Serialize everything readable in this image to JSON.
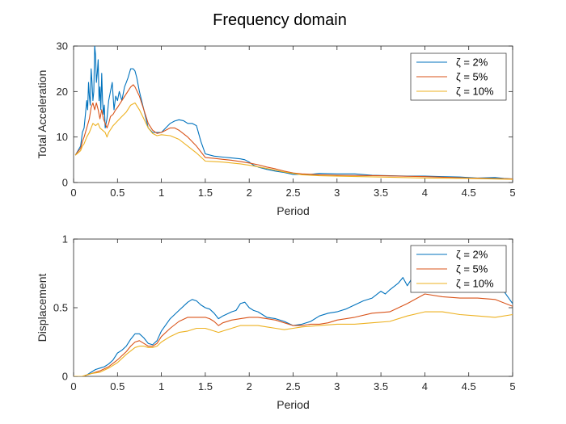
{
  "figure": {
    "title": "Frequency domain"
  },
  "chart_data": [
    {
      "type": "line",
      "xlabel": "Period",
      "ylabel": "Total Acceleration",
      "xlim": [
        0,
        5
      ],
      "ylim": [
        0,
        30
      ],
      "xticks": [
        "0",
        "0.5",
        "1",
        "1.5",
        "2",
        "2.5",
        "3",
        "3.5",
        "4",
        "4.5",
        "5"
      ],
      "yticks": [
        "0",
        "10",
        "20",
        "30"
      ],
      "legend": {
        "position": "top-right"
      },
      "series": [
        {
          "name": "ζ = 2%",
          "color": "#0072BD",
          "x": [
            0.02,
            0.05,
            0.08,
            0.1,
            0.12,
            0.14,
            0.15,
            0.16,
            0.17,
            0.18,
            0.19,
            0.2,
            0.21,
            0.22,
            0.23,
            0.24,
            0.25,
            0.26,
            0.27,
            0.28,
            0.29,
            0.3,
            0.31,
            0.32,
            0.33,
            0.34,
            0.35,
            0.36,
            0.38,
            0.4,
            0.42,
            0.44,
            0.46,
            0.48,
            0.5,
            0.52,
            0.55,
            0.58,
            0.6,
            0.62,
            0.65,
            0.68,
            0.7,
            0.72,
            0.75,
            0.8,
            0.85,
            0.9,
            0.95,
            1.0,
            1.05,
            1.1,
            1.15,
            1.2,
            1.25,
            1.3,
            1.35,
            1.4,
            1.45,
            1.5,
            1.6,
            1.7,
            1.8,
            1.9,
            1.95,
            2.0,
            2.05,
            2.1,
            2.2,
            2.3,
            2.4,
            2.5,
            2.6,
            2.7,
            2.8,
            3.0,
            3.2,
            3.4,
            3.6,
            3.8,
            4.0,
            4.2,
            4.4,
            4.6,
            4.8,
            4.9,
            5.0
          ],
          "y": [
            6,
            7,
            8,
            11,
            12,
            16,
            18,
            16,
            22,
            19,
            17,
            25,
            22,
            18,
            20,
            30,
            28,
            22,
            24,
            27,
            18,
            21,
            16,
            24,
            18,
            15,
            17,
            12,
            14,
            18,
            20,
            22,
            16,
            19,
            18,
            20,
            18,
            21,
            22,
            23,
            25,
            25,
            24.5,
            23,
            20,
            16,
            12,
            11,
            11,
            11,
            12,
            13,
            13.5,
            13.8,
            13.6,
            13,
            13,
            12.5,
            9,
            6.3,
            5.8,
            5.6,
            5.4,
            5.2,
            5.0,
            4.5,
            3.8,
            3.4,
            2.9,
            2.5,
            2.2,
            1.8,
            1.8,
            1.8,
            2.0,
            1.9,
            1.9,
            1.6,
            1.5,
            1.4,
            1.4,
            1.3,
            1.2,
            1.0,
            1.1,
            0.9,
            0.8
          ]
        },
        {
          "name": "ζ = 5%",
          "color": "#D95319",
          "x": [
            0.02,
            0.05,
            0.08,
            0.1,
            0.12,
            0.15,
            0.18,
            0.2,
            0.22,
            0.24,
            0.26,
            0.28,
            0.3,
            0.32,
            0.34,
            0.36,
            0.38,
            0.4,
            0.42,
            0.45,
            0.48,
            0.5,
            0.55,
            0.6,
            0.65,
            0.68,
            0.7,
            0.75,
            0.8,
            0.85,
            0.9,
            0.95,
            1.0,
            1.05,
            1.1,
            1.15,
            1.2,
            1.3,
            1.4,
            1.5,
            1.6,
            1.7,
            1.8,
            1.9,
            2.0,
            2.1,
            2.2,
            2.3,
            2.4,
            2.5,
            2.6,
            2.8,
            3.0,
            3.5,
            4.0,
            4.5,
            5.0
          ],
          "y": [
            6,
            6.8,
            7.5,
            9,
            10,
            12,
            14,
            16.5,
            17.5,
            16,
            17.5,
            16,
            14,
            16,
            14,
            13,
            12,
            13,
            14.5,
            15,
            16,
            16.5,
            18,
            19.5,
            21,
            21.5,
            21,
            19,
            16,
            13,
            11.5,
            10.8,
            11,
            11.5,
            12,
            12,
            11.5,
            10,
            8,
            5.5,
            5.3,
            5.1,
            4.9,
            4.6,
            4.3,
            3.9,
            3.4,
            3.0,
            2.5,
            2.1,
            1.9,
            1.7,
            1.6,
            1.5,
            1.3,
            1.0,
            0.8
          ]
        },
        {
          "name": "ζ = 10%",
          "color": "#EDB120",
          "x": [
            0.02,
            0.05,
            0.08,
            0.1,
            0.12,
            0.15,
            0.18,
            0.2,
            0.22,
            0.25,
            0.28,
            0.3,
            0.33,
            0.36,
            0.38,
            0.4,
            0.45,
            0.5,
            0.55,
            0.6,
            0.65,
            0.7,
            0.75,
            0.8,
            0.85,
            0.9,
            0.95,
            1.0,
            1.1,
            1.2,
            1.3,
            1.4,
            1.5,
            1.6,
            1.7,
            1.8,
            1.9,
            2.0,
            2.2,
            2.4,
            2.6,
            2.8,
            3.0,
            3.5,
            4.0,
            4.5,
            5.0
          ],
          "y": [
            6,
            6.5,
            7,
            8,
            8.5,
            10,
            11,
            12,
            13,
            12.5,
            13,
            12,
            11.5,
            11,
            10,
            11,
            12.5,
            13.5,
            14.5,
            15.5,
            17,
            17.5,
            16,
            14,
            12,
            10.8,
            10.3,
            10.5,
            10.3,
            9.5,
            8,
            6.5,
            4.7,
            4.6,
            4.5,
            4.3,
            4.1,
            3.8,
            3.1,
            2.3,
            1.7,
            1.5,
            1.4,
            1.2,
            1.0,
            0.9,
            0.7
          ]
        }
      ]
    },
    {
      "type": "line",
      "xlabel": "Period",
      "ylabel": "Displacement",
      "xlim": [
        0,
        5
      ],
      "ylim": [
        0,
        1
      ],
      "xticks": [
        "0",
        "0.5",
        "1",
        "1.5",
        "2",
        "2.5",
        "3",
        "3.5",
        "4",
        "4.5",
        "5"
      ],
      "yticks": [
        "0",
        "0.5",
        "1"
      ],
      "legend": {
        "position": "top-right"
      },
      "series": [
        {
          "name": "ζ = 2%",
          "color": "#0072BD",
          "x": [
            0.0,
            0.1,
            0.15,
            0.2,
            0.25,
            0.3,
            0.35,
            0.4,
            0.45,
            0.5,
            0.55,
            0.6,
            0.65,
            0.7,
            0.75,
            0.8,
            0.85,
            0.9,
            0.95,
            1.0,
            1.1,
            1.2,
            1.3,
            1.35,
            1.4,
            1.45,
            1.5,
            1.55,
            1.6,
            1.65,
            1.7,
            1.8,
            1.85,
            1.9,
            1.95,
            2.0,
            2.05,
            2.1,
            2.2,
            2.3,
            2.4,
            2.5,
            2.6,
            2.7,
            2.8,
            2.9,
            3.0,
            3.1,
            3.2,
            3.3,
            3.4,
            3.5,
            3.55,
            3.6,
            3.7,
            3.75,
            3.8,
            3.85,
            3.9,
            4.0,
            4.1,
            4.2,
            4.3,
            4.4,
            4.5,
            4.6,
            4.7,
            4.8,
            4.9,
            5.0
          ],
          "y": [
            0,
            0,
            0.01,
            0.03,
            0.05,
            0.06,
            0.07,
            0.09,
            0.12,
            0.17,
            0.19,
            0.22,
            0.27,
            0.31,
            0.31,
            0.28,
            0.24,
            0.23,
            0.26,
            0.33,
            0.42,
            0.48,
            0.54,
            0.56,
            0.55,
            0.52,
            0.5,
            0.49,
            0.46,
            0.42,
            0.44,
            0.47,
            0.48,
            0.53,
            0.54,
            0.5,
            0.48,
            0.47,
            0.43,
            0.42,
            0.4,
            0.37,
            0.38,
            0.4,
            0.44,
            0.46,
            0.47,
            0.49,
            0.52,
            0.55,
            0.57,
            0.62,
            0.6,
            0.63,
            0.68,
            0.72,
            0.66,
            0.71,
            0.7,
            0.7,
            0.72,
            0.74,
            0.7,
            0.72,
            0.76,
            0.71,
            0.72,
            0.7,
            0.62,
            0.53
          ]
        },
        {
          "name": "ζ = 5%",
          "color": "#D95319",
          "x": [
            0.0,
            0.1,
            0.15,
            0.2,
            0.3,
            0.4,
            0.5,
            0.55,
            0.6,
            0.65,
            0.7,
            0.75,
            0.8,
            0.85,
            0.9,
            0.95,
            1.0,
            1.1,
            1.2,
            1.3,
            1.4,
            1.5,
            1.55,
            1.6,
            1.65,
            1.7,
            1.8,
            1.9,
            2.0,
            2.1,
            2.2,
            2.3,
            2.4,
            2.5,
            2.6,
            2.7,
            2.8,
            2.9,
            3.0,
            3.2,
            3.4,
            3.6,
            3.8,
            4.0,
            4.2,
            4.4,
            4.6,
            4.8,
            5.0
          ],
          "y": [
            0,
            0,
            0.01,
            0.02,
            0.04,
            0.07,
            0.12,
            0.15,
            0.18,
            0.22,
            0.25,
            0.26,
            0.24,
            0.22,
            0.22,
            0.24,
            0.29,
            0.35,
            0.4,
            0.43,
            0.43,
            0.43,
            0.42,
            0.4,
            0.37,
            0.39,
            0.41,
            0.42,
            0.43,
            0.43,
            0.42,
            0.41,
            0.39,
            0.37,
            0.37,
            0.38,
            0.38,
            0.39,
            0.41,
            0.43,
            0.46,
            0.47,
            0.53,
            0.6,
            0.58,
            0.57,
            0.57,
            0.56,
            0.51
          ]
        },
        {
          "name": "ζ = 10%",
          "color": "#EDB120",
          "x": [
            0.0,
            0.1,
            0.15,
            0.2,
            0.3,
            0.4,
            0.5,
            0.6,
            0.7,
            0.75,
            0.8,
            0.85,
            0.9,
            0.95,
            1.0,
            1.1,
            1.2,
            1.3,
            1.4,
            1.5,
            1.6,
            1.65,
            1.7,
            1.8,
            1.9,
            2.0,
            2.1,
            2.2,
            2.3,
            2.4,
            2.5,
            2.6,
            2.8,
            3.0,
            3.2,
            3.4,
            3.6,
            3.8,
            4.0,
            4.2,
            4.4,
            4.6,
            4.8,
            5.0
          ],
          "y": [
            0,
            0,
            0.01,
            0.02,
            0.03,
            0.06,
            0.1,
            0.16,
            0.21,
            0.22,
            0.22,
            0.21,
            0.21,
            0.22,
            0.25,
            0.29,
            0.32,
            0.33,
            0.35,
            0.35,
            0.33,
            0.32,
            0.33,
            0.35,
            0.37,
            0.37,
            0.37,
            0.36,
            0.35,
            0.34,
            0.35,
            0.36,
            0.37,
            0.38,
            0.38,
            0.39,
            0.4,
            0.44,
            0.47,
            0.47,
            0.45,
            0.44,
            0.43,
            0.45
          ]
        }
      ]
    }
  ]
}
